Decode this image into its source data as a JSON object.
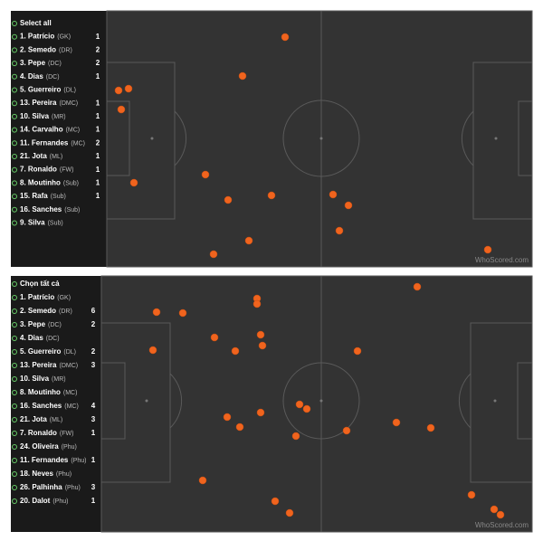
{
  "panels": [
    {
      "select_all": "Select all",
      "watermark": "WhoScored.com",
      "players": [
        {
          "name": "1. Patrício",
          "pos": "(GK)",
          "count": 1
        },
        {
          "name": "2. Semedo",
          "pos": "(DR)",
          "count": 2
        },
        {
          "name": "3. Pepe",
          "pos": "(DC)",
          "count": 2
        },
        {
          "name": "4. Dias",
          "pos": "(DC)",
          "count": 1
        },
        {
          "name": "5. Guerreiro",
          "pos": "(DL)"
        },
        {
          "name": "13. Pereira",
          "pos": "(DMC)",
          "count": 1
        },
        {
          "name": "10. Silva",
          "pos": "(MR)",
          "count": 1
        },
        {
          "name": "14. Carvalho",
          "pos": "(MC)",
          "count": 1
        },
        {
          "name": "11. Fernandes",
          "pos": "(MC)",
          "count": 2
        },
        {
          "name": "21. Jota",
          "pos": "(ML)",
          "count": 1
        },
        {
          "name": "7. Ronaldo",
          "pos": "(FW)",
          "count": 1
        },
        {
          "name": "8. Moutinho",
          "pos": "(Sub)",
          "count": 1
        },
        {
          "name": "15. Rafa",
          "pos": "(Sub)",
          "count": 1
        },
        {
          "name": "16. Sanches",
          "pos": "(Sub)"
        },
        {
          "name": "9. Silva",
          "pos": "(Sub)"
        }
      ]
    },
    {
      "select_all": "Chọn tất cả",
      "watermark": "WhoScored.com",
      "players": [
        {
          "name": "1. Patrício",
          "pos": "(GK)"
        },
        {
          "name": "2. Semedo",
          "pos": "(DR)",
          "count": 6
        },
        {
          "name": "3. Pepe",
          "pos": "(DC)",
          "count": 2
        },
        {
          "name": "4. Dias",
          "pos": "(DC)"
        },
        {
          "name": "5. Guerreiro",
          "pos": "(DL)",
          "count": 2
        },
        {
          "name": "13. Pereira",
          "pos": "(DMC)",
          "count": 3
        },
        {
          "name": "10. Silva",
          "pos": "(MR)"
        },
        {
          "name": "8. Moutinho",
          "pos": "(MC)"
        },
        {
          "name": "16. Sanches",
          "pos": "(MC)",
          "count": 4
        },
        {
          "name": "21. Jota",
          "pos": "(ML)",
          "count": 3
        },
        {
          "name": "7. Ronaldo",
          "pos": "(FW)",
          "count": 1
        },
        {
          "name": "24. Oliveira",
          "pos": "(Phu)"
        },
        {
          "name": "11. Fernandes",
          "pos": "(Phu)",
          "count": 1
        },
        {
          "name": "18. Neves",
          "pos": "(Phu)"
        },
        {
          "name": "26. Palhinha",
          "pos": "(Phu)",
          "count": 3
        },
        {
          "name": "20. Dalot",
          "pos": "(Phu)",
          "count": 1
        }
      ]
    }
  ]
}
